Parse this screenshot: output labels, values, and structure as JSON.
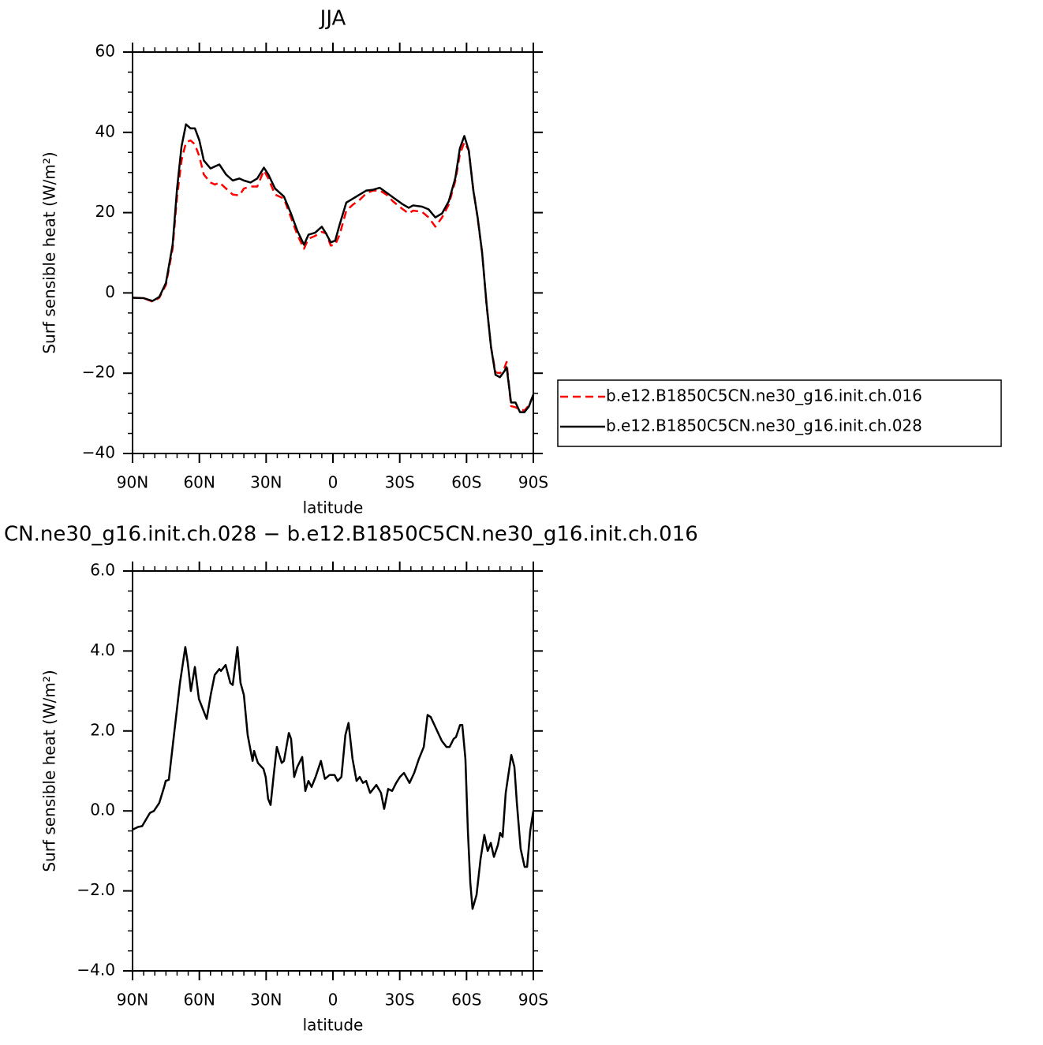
{
  "chart_data": [
    {
      "type": "line",
      "title": "JJA",
      "xlabel": "latitude",
      "ylabel": "Surf sensible heat (W/m²)",
      "x": [
        90,
        85,
        81,
        78,
        75,
        72,
        70,
        68,
        66,
        64,
        62,
        60,
        58,
        55,
        53,
        51,
        48,
        45,
        42,
        40,
        37,
        34,
        31,
        29,
        26,
        22,
        19,
        16,
        13,
        11,
        8,
        5,
        3,
        1,
        -1,
        -3,
        -6,
        -9,
        -12,
        -15,
        -18,
        -21,
        -24,
        -27,
        -31,
        -34,
        -36,
        -40,
        -43,
        -46,
        -49,
        -52,
        -55,
        -57,
        -59,
        -61,
        -63,
        -65,
        -67,
        -69,
        -71,
        -73,
        -75,
        -77,
        -78,
        -80,
        -82,
        -84,
        -86,
        -88,
        -90
      ],
      "series": [
        {
          "name": "b.e12.B1850C5CN.ne30_g16.init.ch.016",
          "color": "#ff0000",
          "dash": "dashed",
          "values": [
            -1.2,
            -1.3,
            -2.2,
            -1.2,
            2,
            11,
            24,
            33,
            37.5,
            38,
            37,
            34,
            29.5,
            27.5,
            27,
            27.5,
            26,
            24.5,
            24.3,
            26,
            26.5,
            26.5,
            30.5,
            28.5,
            24.5,
            23.5,
            19,
            14.5,
            11,
            13.5,
            14.2,
            15.2,
            14.8,
            11.8,
            12,
            14.5,
            20.5,
            22,
            23.2,
            24.8,
            25.5,
            25.5,
            24.5,
            22.8,
            21,
            19.8,
            20.5,
            20.2,
            18.8,
            16.5,
            18.8,
            22,
            28,
            34.5,
            37.5,
            35.5,
            26,
            18.5,
            10,
            -3,
            -13.5,
            -19.8,
            -20,
            -18.7,
            -17.2,
            -28.2,
            -28.5,
            -29,
            -29.3,
            -28,
            -25.5
          ]
        },
        {
          "name": "b.e12.B1850C5CN.ne30_g16.init.ch.028",
          "color": "#000000",
          "dash": "solid",
          "values": [
            -1.2,
            -1.3,
            -2,
            -1,
            2.5,
            12,
            26,
            36.5,
            42,
            41,
            41,
            38,
            33,
            31,
            31.5,
            32,
            29.5,
            28,
            28.5,
            28,
            27.5,
            28.5,
            31.2,
            29.5,
            26,
            24,
            20,
            15.5,
            12,
            14.5,
            15,
            16.5,
            14.7,
            12.6,
            13,
            17,
            22.5,
            23.5,
            24.5,
            25.5,
            25.7,
            26.2,
            25,
            23.8,
            22.2,
            21.2,
            21.8,
            21.5,
            20.8,
            18.8,
            19.8,
            22.8,
            28.7,
            36,
            39.1,
            35.5,
            25.7,
            18.8,
            10,
            -2.8,
            -13.5,
            -20.4,
            -21,
            -19.5,
            -18.5,
            -27.3,
            -27.3,
            -29.7,
            -29.7,
            -28.3,
            -25.3
          ]
        }
      ],
      "xlim": [
        90,
        -90
      ],
      "xticks": [
        {
          "value": 90,
          "label": "90N"
        },
        {
          "value": 60,
          "label": "60N"
        },
        {
          "value": 30,
          "label": "30N"
        },
        0,
        {
          "value": -30,
          "label": "30S"
        },
        {
          "value": -60,
          "label": "60S"
        },
        {
          "value": -90,
          "label": "90S"
        }
      ],
      "ylim": [
        -40,
        60
      ],
      "yticks": [
        60,
        40,
        20,
        0,
        {
          "value": -20,
          "label": "−20"
        },
        {
          "value": -40,
          "label": "−40"
        }
      ],
      "legend": "right"
    },
    {
      "type": "line",
      "title": "CN.ne30_g16.init.ch.028 − b.e12.B1850C5CN.ne30_g16.init.ch.016",
      "xlabel": "latitude",
      "ylabel": "Surf sensible heat (W/m²)",
      "x": [
        90,
        87.5,
        85.7,
        82.2,
        80.4,
        78,
        75.8,
        75.1,
        73.7,
        71.6,
        68.7,
        66.3,
        65.2,
        63.8,
        62,
        60.2,
        58.8,
        56.7,
        54.9,
        53.1,
        51,
        50.3,
        48.2,
        46.1,
        45,
        42.9,
        41.5,
        40,
        38.3,
        36.1,
        35.4,
        33.7,
        31.2,
        30.2,
        29.1,
        28,
        26.6,
        25.2,
        23,
        22,
        19.8,
        18.8,
        17.4,
        16,
        13.8,
        12.4,
        11,
        9.6,
        7.8,
        5.4,
        3.6,
        1.5,
        -0.7,
        -2.1,
        -3.8,
        -5.6,
        -7,
        -8.8,
        -10.6,
        -12,
        -13.5,
        -14.9,
        -16.7,
        -19.5,
        -21.6,
        -23,
        -24.8,
        -26.6,
        -28.4,
        -30.1,
        -31.9,
        -34.4,
        -36.5,
        -38.6,
        -40.8,
        -42.5,
        -43.9,
        -46.4,
        -48.9,
        -51,
        -52.4,
        -54.2,
        -55.3,
        -57.1,
        -58.1,
        -59.5,
        -60.6,
        -61.7,
        -62.7,
        -64.5,
        -66.3,
        -68,
        -69.5,
        -70.9,
        -72.3,
        -74.1,
        -75.1,
        -76.2,
        -77.6,
        -80.1,
        -81.5,
        -82.6,
        -84.3,
        -86.1,
        -87.2,
        -88.6,
        -90
      ],
      "series": [
        {
          "color": "#000000",
          "dash": "solid",
          "values": [
            -0.47,
            -0.4,
            -0.38,
            -0.05,
            0,
            0.2,
            0.6,
            0.75,
            0.78,
            1.8,
            3.2,
            4.1,
            3.7,
            3,
            3.6,
            2.8,
            2.6,
            2.3,
            2.9,
            3.4,
            3.55,
            3.5,
            3.65,
            3.2,
            3.15,
            4.1,
            3.2,
            2.9,
            1.9,
            1.25,
            1.5,
            1.2,
            1.05,
            0.85,
            0.3,
            0.15,
            0.9,
            1.6,
            1.2,
            1.25,
            1.95,
            1.8,
            0.85,
            1.1,
            1.35,
            0.5,
            0.75,
            0.6,
            0.85,
            1.25,
            0.8,
            0.9,
            0.9,
            0.75,
            0.85,
            1.9,
            2.2,
            1.3,
            0.75,
            0.85,
            0.7,
            0.75,
            0.45,
            0.65,
            0.45,
            0.05,
            0.55,
            0.5,
            0.7,
            0.85,
            0.95,
            0.7,
            0.95,
            1.3,
            1.6,
            2.4,
            2.35,
            2.05,
            1.75,
            1.6,
            1.6,
            1.8,
            1.85,
            2.15,
            2.15,
            1.3,
            -0.5,
            -1.8,
            -2.45,
            -2.1,
            -1.2,
            -0.6,
            -1,
            -0.8,
            -1.15,
            -0.85,
            -0.55,
            -0.65,
            0.45,
            1.4,
            1.1,
            0.2,
            -0.95,
            -1.4,
            -1.4,
            -0.5,
            0
          ]
        }
      ],
      "xlim": [
        90,
        -90
      ],
      "xticks": [
        {
          "value": 90,
          "label": "90N"
        },
        {
          "value": 60,
          "label": "60N"
        },
        {
          "value": 30,
          "label": "30N"
        },
        0,
        {
          "value": -30,
          "label": "30S"
        },
        {
          "value": -60,
          "label": "60S"
        },
        {
          "value": -90,
          "label": "90S"
        }
      ],
      "ylim": [
        -4,
        6
      ],
      "yticks": [
        {
          "value": 6,
          "label": "6.0"
        },
        {
          "value": 4,
          "label": "4.0"
        },
        {
          "value": 2,
          "label": "2.0"
        },
        {
          "value": 0,
          "label": "0.0"
        },
        {
          "value": -2,
          "label": "−2.0"
        },
        {
          "value": -4,
          "label": "−4.0"
        }
      ]
    }
  ]
}
